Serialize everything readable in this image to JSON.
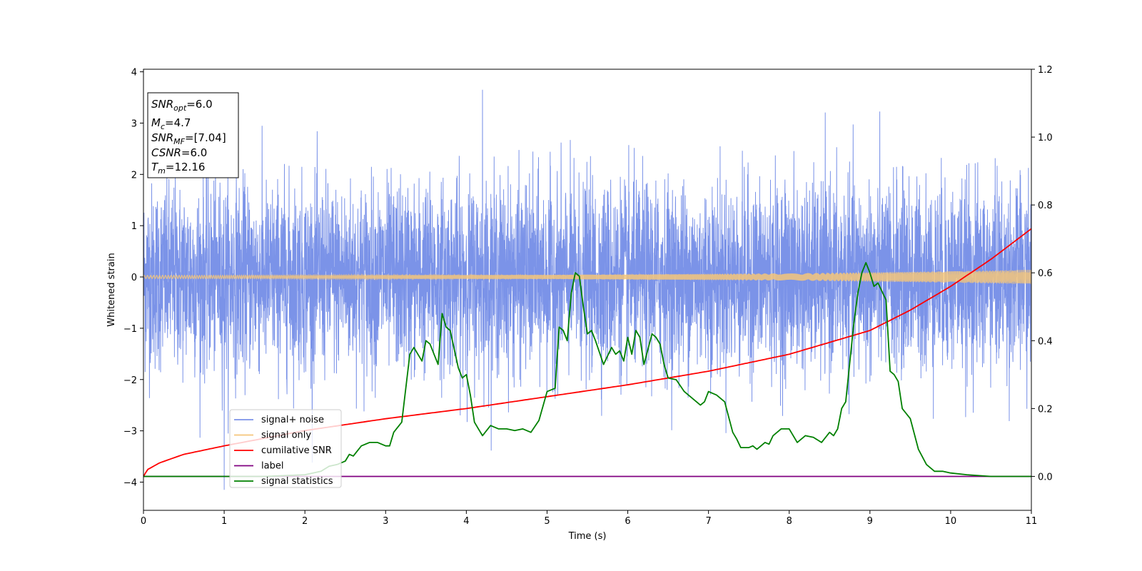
{
  "chart_data": {
    "type": "line",
    "xlabel": "Time (s)",
    "ylabel": "Whitened strain",
    "xlim": [
      0,
      11
    ],
    "ylim_left": [
      -4.55,
      4.05
    ],
    "ylim_right": [
      -0.1,
      1.2
    ],
    "x_ticks": [
      "0",
      "1",
      "2",
      "3",
      "4",
      "5",
      "6",
      "7",
      "8",
      "9",
      "10",
      "11"
    ],
    "y_ticks_left": [
      "4",
      "3",
      "2",
      "1",
      "0",
      "−1",
      "−2",
      "−3",
      "−4"
    ],
    "y_ticks_right": [
      "1.2",
      "1.0",
      "0.8",
      "0.6",
      "0.4",
      "0.2",
      "0.0"
    ],
    "grid": false,
    "legend_position": "lower-left",
    "info_box": {
      "snr_opt": {
        "sym": "SNR",
        "sub": "opt",
        "value": "=6.0"
      },
      "mc": {
        "sym": "M",
        "sub": "c",
        "value": "=4.7"
      },
      "snr_mf": {
        "sym": "SNR",
        "sub": "MF",
        "value": "=[7.04]"
      },
      "csnr": {
        "sym": "CSNR",
        "value": "=6.0"
      },
      "tm": {
        "sym": "T",
        "sub": "m",
        "value": "=12.16"
      }
    },
    "series": [
      {
        "name": "signal+ noise",
        "color": "#7b93e8",
        "axis": "left",
        "description_values": {
          "typical_range": [
            -2.3,
            2.3
          ],
          "max": 3.65,
          "min": -4.15,
          "max_at": 4.2,
          "min_at": 1.0
        }
      },
      {
        "name": "signal only",
        "color": "#f5c57a",
        "axis": "left",
        "envelope": {
          "x": [
            0,
            5,
            8,
            9,
            10,
            11
          ],
          "amp": [
            0.03,
            0.04,
            0.07,
            0.09,
            0.11,
            0.14
          ]
        }
      },
      {
        "name": "cumilative SNR",
        "color": "#ff0000",
        "axis": "right",
        "x": [
          0,
          0.05,
          0.2,
          0.5,
          1,
          2,
          3,
          4,
          5,
          6,
          7,
          8,
          9,
          9.5,
          10,
          10.5,
          11
        ],
        "y": [
          0.0,
          0.02,
          0.04,
          0.065,
          0.09,
          0.135,
          0.17,
          0.2,
          0.235,
          0.27,
          0.31,
          0.36,
          0.43,
          0.49,
          0.56,
          0.64,
          0.73
        ]
      },
      {
        "name": "label",
        "color": "#800080",
        "axis": "right",
        "x": [
          0,
          11
        ],
        "y": [
          0.0,
          0.0
        ]
      },
      {
        "name": "signal statistics",
        "color": "#008000",
        "axis": "right",
        "x": [
          0,
          0.5,
          1.0,
          1.5,
          2.0,
          2.1,
          2.2,
          2.3,
          2.4,
          2.5,
          2.55,
          2.6,
          2.7,
          2.8,
          2.9,
          3.0,
          3.05,
          3.1,
          3.2,
          3.3,
          3.35,
          3.4,
          3.45,
          3.5,
          3.55,
          3.6,
          3.65,
          3.7,
          3.75,
          3.8,
          3.9,
          3.95,
          4.0,
          4.05,
          4.1,
          4.15,
          4.2,
          4.3,
          4.4,
          4.5,
          4.6,
          4.7,
          4.8,
          4.9,
          5.0,
          5.1,
          5.15,
          5.2,
          5.25,
          5.3,
          5.35,
          5.4,
          5.45,
          5.5,
          5.55,
          5.6,
          5.7,
          5.8,
          5.85,
          5.9,
          5.95,
          6.0,
          6.05,
          6.1,
          6.15,
          6.2,
          6.3,
          6.35,
          6.4,
          6.45,
          6.5,
          6.6,
          6.7,
          6.8,
          6.9,
          6.95,
          7.0,
          7.1,
          7.2,
          7.3,
          7.35,
          7.4,
          7.5,
          7.55,
          7.6,
          7.7,
          7.75,
          7.8,
          7.9,
          8.0,
          8.1,
          8.2,
          8.3,
          8.4,
          8.5,
          8.55,
          8.6,
          8.65,
          8.7,
          8.8,
          8.85,
          8.9,
          8.95,
          9.0,
          9.05,
          9.1,
          9.2,
          9.25,
          9.3,
          9.35,
          9.4,
          9.5,
          9.6,
          9.7,
          9.8,
          9.9,
          10.0,
          10.2,
          10.5,
          11.0
        ],
        "y": [
          0.0,
          0.0,
          0.0,
          0.0,
          0.005,
          0.01,
          0.015,
          0.03,
          0.035,
          0.045,
          0.065,
          0.06,
          0.09,
          0.1,
          0.1,
          0.09,
          0.09,
          0.13,
          0.16,
          0.36,
          0.38,
          0.36,
          0.34,
          0.4,
          0.39,
          0.36,
          0.33,
          0.48,
          0.44,
          0.43,
          0.32,
          0.29,
          0.3,
          0.24,
          0.16,
          0.14,
          0.12,
          0.15,
          0.14,
          0.14,
          0.135,
          0.14,
          0.13,
          0.165,
          0.25,
          0.26,
          0.44,
          0.43,
          0.4,
          0.54,
          0.6,
          0.59,
          0.5,
          0.42,
          0.43,
          0.4,
          0.33,
          0.38,
          0.36,
          0.37,
          0.34,
          0.41,
          0.36,
          0.43,
          0.41,
          0.33,
          0.42,
          0.41,
          0.39,
          0.33,
          0.29,
          0.285,
          0.25,
          0.23,
          0.21,
          0.22,
          0.25,
          0.24,
          0.22,
          0.13,
          0.11,
          0.085,
          0.085,
          0.09,
          0.08,
          0.1,
          0.095,
          0.12,
          0.14,
          0.14,
          0.1,
          0.12,
          0.115,
          0.1,
          0.13,
          0.12,
          0.14,
          0.2,
          0.22,
          0.45,
          0.54,
          0.6,
          0.63,
          0.6,
          0.56,
          0.57,
          0.52,
          0.31,
          0.3,
          0.28,
          0.2,
          0.17,
          0.08,
          0.035,
          0.015,
          0.015,
          0.01,
          0.005,
          0.0,
          0.0
        ]
      }
    ]
  }
}
